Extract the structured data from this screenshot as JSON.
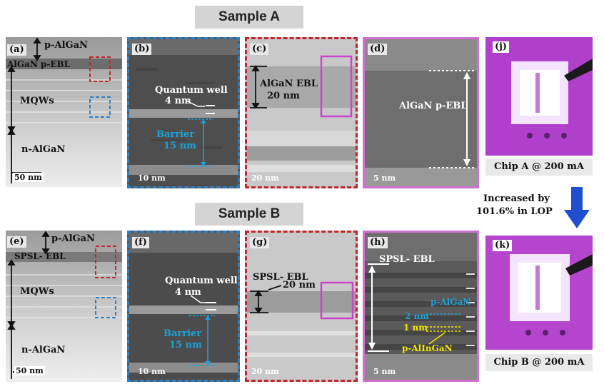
{
  "titles": {
    "sample_a": "Sample A",
    "sample_b": "Sample B"
  },
  "panel_a": {
    "letter": "(a)",
    "p_algan": "p-AlGaN",
    "ebl": "AlGaN p-EBL",
    "mqws": "MQWs",
    "n_algan": "n-AlGaN",
    "scale": "50 nm"
  },
  "panel_b": {
    "letter": "(b)",
    "qw": "Quantum well",
    "qw_size": "4 nm",
    "barrier": "Barrier",
    "barrier_size": "15 nm",
    "scale": "10 nm"
  },
  "panel_c": {
    "letter": "(c)",
    "ebl": "AlGaN EBL",
    "ebl_size": "20 nm",
    "scale": "20 nm"
  },
  "panel_d": {
    "letter": "(d)",
    "ebl": "AlGaN p-EBL",
    "scale": "5 nm"
  },
  "panel_j": {
    "letter": "(j)",
    "caption": "Chip A  @ 200 mA"
  },
  "panel_e": {
    "letter": "(e)",
    "p_algan": "p-AlGaN",
    "ebl": "SPSL- EBL",
    "mqws": "MQWs",
    "n_algan": "n-AlGaN",
    "scale": "50 nm"
  },
  "panel_f": {
    "letter": "(f)",
    "qw": "Quantum well",
    "qw_size": "4 nm",
    "barrier": "Barrier",
    "barrier_size": "15 nm",
    "scale": "10 nm"
  },
  "panel_g": {
    "letter": "(g)",
    "ebl": "SPSL- EBL",
    "ebl_size": "20 nm",
    "scale": "20 nm"
  },
  "panel_h": {
    "letter": "(h)",
    "ebl": "SPSL- EBL",
    "p_algan": "p-AlGaN",
    "size_2nm": "2 nm",
    "size_1nm": "1 nm",
    "p_alingan": "p-AlInGaN",
    "scale": "5 nm"
  },
  "panel_k": {
    "letter": "(k)",
    "caption": "Chip B  @ 200 mA"
  },
  "increase_note": {
    "line1": "Increased by",
    "line2": "101.6% in LOP"
  },
  "colors": {
    "red_frame": "#c0272d",
    "blue_frame": "#2f7fc1",
    "magenta_frame": "#d070d0",
    "arrow_blue": "#1f4fd0",
    "cyan_text": "#1aa3d9"
  }
}
